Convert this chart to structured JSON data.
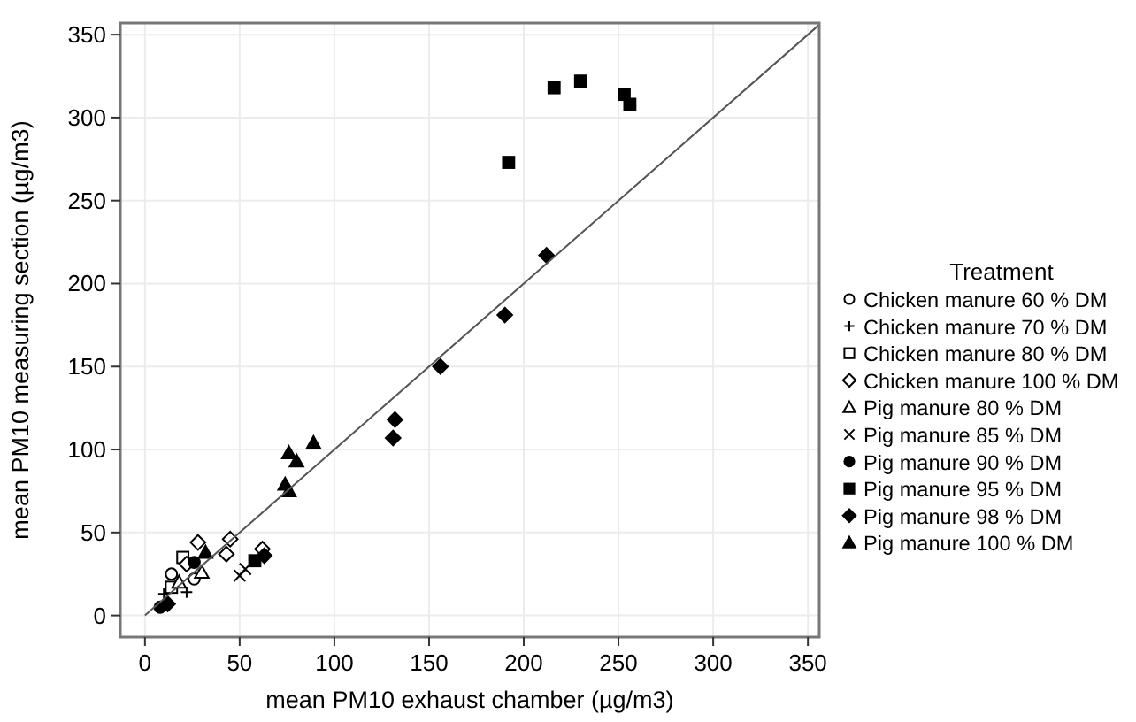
{
  "chart_data": {
    "type": "scatter",
    "xlabel": "mean PM10 exhaust chamber (µg/m3)",
    "ylabel": "mean PM10 measuring section (µg/m3)",
    "legend_title": "Treatment",
    "legend": "right",
    "grid": true,
    "xlim": [
      -13,
      356
    ],
    "ylim": [
      -13,
      357
    ],
    "xticks": [
      0,
      50,
      100,
      150,
      200,
      250,
      300,
      350
    ],
    "yticks": [
      0,
      50,
      100,
      150,
      200,
      250,
      300,
      350
    ],
    "series": [
      {
        "name": "Chicken manure 60 % DM",
        "color": "#000000",
        "marker": "circle-open",
        "x": [
          14,
          26
        ],
        "values": [
          25,
          22
        ]
      },
      {
        "name": "Chicken manure 70 % DM",
        "color": "#000000",
        "marker": "plus",
        "x": [
          10,
          22
        ],
        "values": [
          13,
          14
        ]
      },
      {
        "name": "Chicken manure 80 % DM",
        "color": "#000000",
        "marker": "square-open",
        "x": [
          20,
          14
        ],
        "values": [
          35,
          17
        ]
      },
      {
        "name": "Chicken manure 100 % DM",
        "color": "#000000",
        "marker": "diamond-open",
        "x": [
          28,
          43,
          45,
          62,
          22
        ],
        "values": [
          44,
          37,
          46,
          40,
          31
        ]
      },
      {
        "name": "Pig manure 80 % DM",
        "color": "#000000",
        "marker": "triangle-open",
        "x": [
          18,
          30
        ],
        "values": [
          20,
          26
        ]
      },
      {
        "name": "Pig manure 85 % DM",
        "color": "#000000",
        "marker": "cross",
        "x": [
          50,
          53
        ],
        "values": [
          24,
          28
        ]
      },
      {
        "name": "Pig manure 90 % DM",
        "color": "#000000",
        "marker": "circle",
        "x": [
          8,
          26
        ],
        "values": [
          5,
          32
        ]
      },
      {
        "name": "Pig manure 95 % DM",
        "color": "#000000",
        "marker": "square",
        "x": [
          216,
          230,
          253,
          256,
          192,
          58
        ],
        "values": [
          318,
          322,
          314,
          308,
          273,
          33
        ]
      },
      {
        "name": "Pig manure 98 % DM",
        "color": "#000000",
        "marker": "diamond",
        "x": [
          212,
          190,
          156,
          132,
          131,
          12,
          63
        ],
        "values": [
          217,
          181,
          150,
          118,
          107,
          7,
          36
        ]
      },
      {
        "name": "Pig manure 100 % DM",
        "color": "#000000",
        "marker": "triangle",
        "x": [
          76,
          80,
          89,
          74,
          76,
          32
        ],
        "values": [
          98,
          93,
          104,
          79,
          75,
          38
        ]
      },
      {
        "type": "line",
        "color": "#555555",
        "x": [
          0,
          356
        ],
        "values": [
          0,
          356
        ]
      }
    ]
  }
}
